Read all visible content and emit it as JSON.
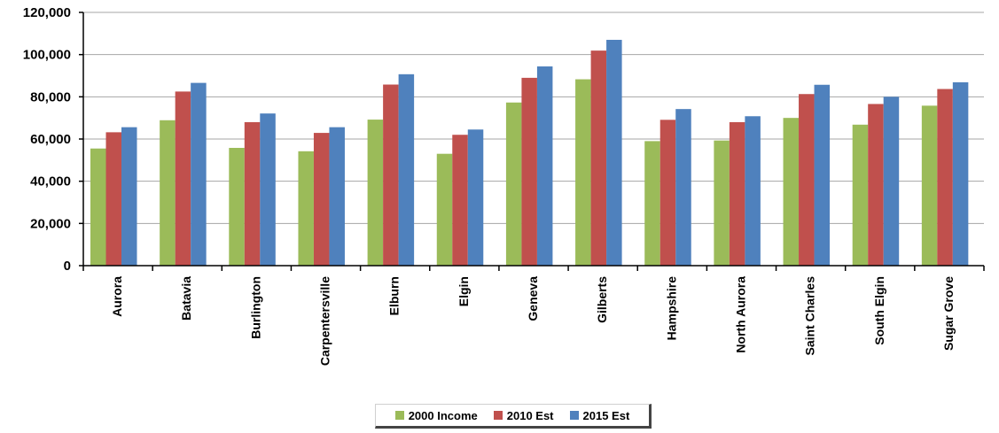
{
  "chart_data": {
    "type": "bar",
    "title": "",
    "xlabel": "",
    "ylabel": "",
    "ylim": [
      0,
      120000
    ],
    "yticks": [
      0,
      20000,
      40000,
      60000,
      80000,
      100000,
      120000
    ],
    "ytick_labels": [
      "0",
      "20,000",
      "40,000",
      "60,000",
      "80,000",
      "100,000",
      "120,000"
    ],
    "grid": true,
    "legend_position": "bottom",
    "categories": [
      "Aurora",
      "Batavia",
      "Burlington",
      "Carpentersville",
      "Elburn",
      "Elgin",
      "Geneva",
      "Gilberts",
      "Hampshire",
      "North Aurora",
      "Saint Charles",
      "South Elgin",
      "Sugar Grove"
    ],
    "series": [
      {
        "name": "2000 Income",
        "color": "#9BBB59",
        "values": [
          55500,
          68900,
          55800,
          54200,
          69200,
          53000,
          77300,
          88300,
          59000,
          59300,
          70000,
          66800,
          75800
        ]
      },
      {
        "name": "2010 Est",
        "color": "#C0504D",
        "values": [
          63200,
          82500,
          68000,
          62900,
          85800,
          62000,
          89000,
          101900,
          69100,
          68000,
          81300,
          76600,
          83700
        ]
      },
      {
        "name": "2015 Est",
        "color": "#4F81BD",
        "values": [
          65600,
          86600,
          72100,
          65600,
          90700,
          64500,
          94400,
          107000,
          74200,
          70800,
          85700,
          80000,
          86900
        ]
      }
    ]
  }
}
